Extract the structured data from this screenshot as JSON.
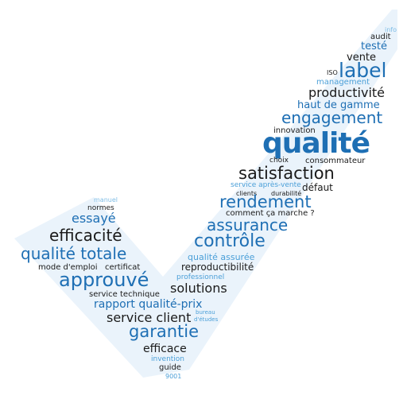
{
  "words": {
    "info": "info",
    "audit": "audit",
    "teste": "testé",
    "vente": "vente",
    "iso": "ISO",
    "label": "label",
    "management": "management",
    "productivite": "productivité",
    "haut_de_gamme": "haut de gamme",
    "engagement": "engagement",
    "innovation": "innovation",
    "qualite": "qualité",
    "choix": "choix",
    "consommateur": "consommateur",
    "satisfaction": "satisfaction",
    "service_apres_vente": "service après-vente",
    "defaut": "défaut",
    "clients": "clients",
    "durabilite": "durabilité",
    "rendement": "rendement",
    "comment_ca_marche": "comment ça marche ?",
    "assurance": "assurance",
    "controle": "contrôle",
    "qualite_assuree": "qualité assurée",
    "reproductibilite": "reproductibilité",
    "professionnel": "professionnel",
    "solutions": "solutions",
    "manuel": "manuel",
    "normes": "normes",
    "essaye": "essayé",
    "efficacite": "efficacité",
    "qualite_totale": "qualité totale",
    "mode_emploi": "mode d'emploi",
    "certificat": "certificat",
    "approuve": "approuvé",
    "service_technique": "service technique",
    "rapport_qualite_prix": "rapport qualité-prix",
    "service_client": "service client",
    "bureau": "bureau",
    "d_etudes": "d'études",
    "garantie": "garantie",
    "efficace": "efficace",
    "invention": "invention",
    "guide": "guide",
    "n9001": "9001"
  },
  "colors": {
    "dark": "#1a1a1a",
    "blue": "#1e6fb4",
    "light_blue": "#4a9fd8",
    "very_light_blue": "#7fbde6",
    "shape_fill": "#eaf3fb"
  }
}
